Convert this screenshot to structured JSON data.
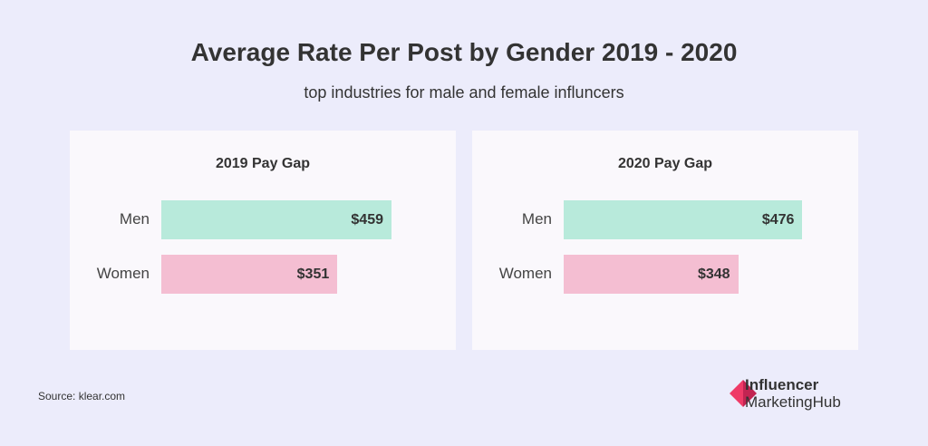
{
  "title": "Average Rate Per Post by Gender 2019 - 2020",
  "subtitle": "top industries for male and female influncers",
  "source": "Source:  klear.com",
  "logo": {
    "line1": "Influencer",
    "line2": "MarketingHub"
  },
  "colors": {
    "men": "#b8eadb",
    "women": "#f4bed2",
    "background": "#ececfb",
    "panel": "#faf8fc"
  },
  "chart_data": [
    {
      "type": "bar",
      "title": "2019 Pay Gap",
      "categories": [
        "Men",
        "Women"
      ],
      "values": [
        459,
        351
      ],
      "value_labels": [
        "$459",
        "$351"
      ]
    },
    {
      "type": "bar",
      "title": "2020 Pay Gap",
      "categories": [
        "Men",
        "Women"
      ],
      "values": [
        476,
        348
      ],
      "value_labels": [
        "$476",
        "$348"
      ]
    }
  ]
}
